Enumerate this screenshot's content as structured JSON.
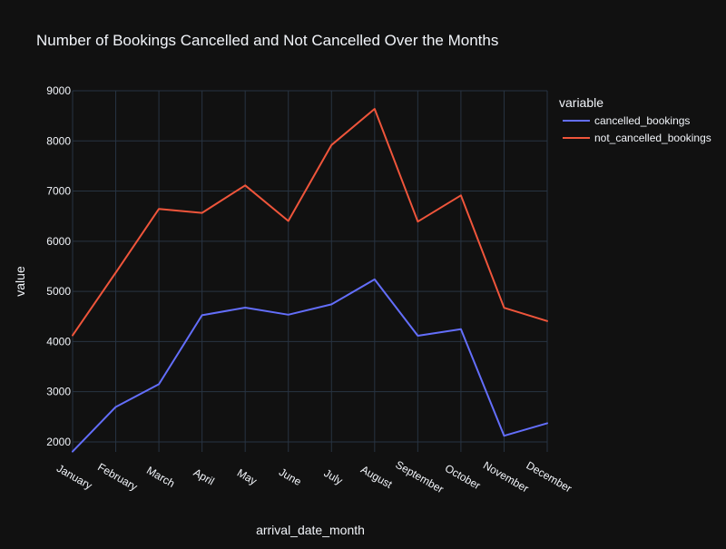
{
  "chart_data": {
    "type": "line",
    "title": "Number of Bookings Cancelled and Not Cancelled Over the Months",
    "xlabel": "arrival_date_month",
    "ylabel": "value",
    "categories": [
      "January",
      "February",
      "March",
      "April",
      "May",
      "June",
      "July",
      "August",
      "September",
      "October",
      "November",
      "December"
    ],
    "yticks": [
      2000,
      3000,
      4000,
      5000,
      6000,
      7000,
      8000,
      9000
    ],
    "ylim": [
      1800,
      9000
    ],
    "grid": true,
    "legend": {
      "title": "variable",
      "placement": "top-right"
    },
    "series": [
      {
        "name": "cancelled_bookings",
        "color": "#636efa",
        "values": [
          1807,
          2696,
          3149,
          4524,
          4677,
          4535,
          4742,
          5239,
          4116,
          4246,
          2122,
          2371
        ]
      },
      {
        "name": "not_cancelled_bookings",
        "color": "#ef553b",
        "values": [
          4122,
          5372,
          6645,
          6565,
          7114,
          6404,
          7919,
          8638,
          6392,
          6914,
          4672,
          4409
        ]
      }
    ]
  }
}
